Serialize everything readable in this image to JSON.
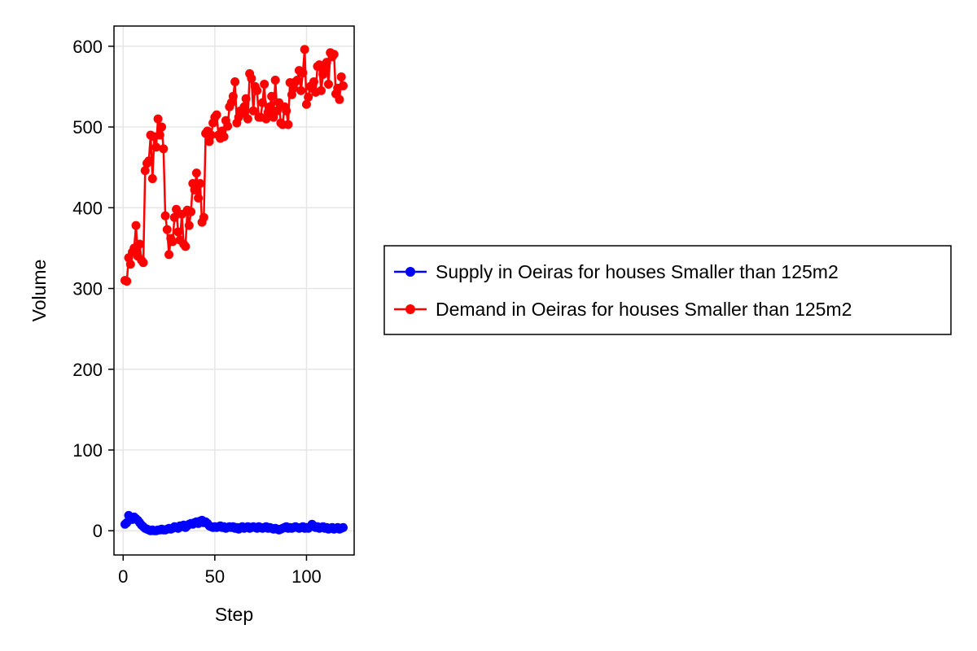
{
  "chart_data": {
    "type": "line",
    "xlabel": "Step",
    "ylabel": "Volume",
    "xlim": [
      -5,
      126
    ],
    "ylim": [
      -30,
      625
    ],
    "x_ticks": [
      0,
      50,
      100
    ],
    "y_ticks": [
      0,
      100,
      200,
      300,
      400,
      500,
      600
    ],
    "grid": true,
    "legend_position": "right",
    "series": [
      {
        "name": "Supply in Oeiras for houses Smaller than 125m2",
        "color": "#0000ff",
        "marker": "circle",
        "x": [
          1,
          2,
          3,
          4,
          5,
          6,
          7,
          8,
          9,
          10,
          11,
          12,
          13,
          14,
          15,
          16,
          17,
          18,
          19,
          20,
          21,
          22,
          23,
          24,
          25,
          26,
          27,
          28,
          29,
          30,
          31,
          32,
          33,
          34,
          35,
          36,
          37,
          38,
          39,
          40,
          41,
          42,
          43,
          44,
          45,
          46,
          47,
          48,
          49,
          50,
          51,
          52,
          53,
          54,
          55,
          56,
          57,
          58,
          59,
          60,
          61,
          62,
          63,
          64,
          65,
          66,
          67,
          68,
          69,
          70,
          71,
          72,
          73,
          74,
          75,
          76,
          77,
          78,
          79,
          80,
          81,
          82,
          83,
          84,
          85,
          86,
          87,
          88,
          89,
          90,
          91,
          92,
          93,
          94,
          95,
          96,
          97,
          98,
          99,
          100,
          101,
          102,
          103,
          104,
          105,
          106,
          107,
          108,
          109,
          110,
          111,
          112,
          113,
          114,
          115,
          116,
          117,
          118,
          119,
          120
        ],
        "y": [
          8,
          10,
          19,
          15,
          14,
          17,
          15,
          13,
          10,
          7,
          5,
          3,
          2,
          1,
          0,
          1,
          0,
          0,
          1,
          1,
          2,
          1,
          1,
          2,
          3,
          2,
          3,
          5,
          4,
          3,
          6,
          5,
          7,
          4,
          6,
          8,
          9,
          8,
          10,
          11,
          9,
          12,
          13,
          10,
          11,
          9,
          6,
          5,
          4,
          5,
          4,
          5,
          6,
          4,
          5,
          3,
          4,
          5,
          4,
          5,
          3,
          4,
          2,
          4,
          5,
          3,
          4,
          5,
          3,
          4,
          5,
          4,
          3,
          5,
          4,
          3,
          4,
          5,
          3,
          4,
          3,
          2,
          3,
          2,
          1,
          2,
          3,
          4,
          5,
          3,
          4,
          3,
          4,
          5,
          4,
          3,
          4,
          5,
          3,
          4,
          3,
          5,
          8,
          6,
          4,
          5,
          3,
          4,
          5,
          3,
          4,
          2,
          3,
          4,
          2,
          3,
          4,
          2,
          3,
          4
        ]
      },
      {
        "name": "Demand in Oeiras for houses Smaller than 125m2",
        "color": "#ff0000",
        "marker": "circle",
        "x": [
          1,
          2,
          3,
          4,
          5,
          6,
          7,
          8,
          9,
          10,
          11,
          12,
          13,
          14,
          15,
          16,
          17,
          18,
          19,
          20,
          21,
          22,
          23,
          24,
          25,
          26,
          27,
          28,
          29,
          30,
          31,
          32,
          33,
          34,
          35,
          36,
          37,
          38,
          39,
          40,
          41,
          42,
          43,
          44,
          45,
          46,
          47,
          48,
          49,
          50,
          51,
          52,
          53,
          54,
          55,
          56,
          57,
          58,
          59,
          60,
          61,
          62,
          63,
          64,
          65,
          66,
          67,
          68,
          69,
          70,
          71,
          72,
          73,
          74,
          75,
          76,
          77,
          78,
          79,
          80,
          81,
          82,
          83,
          84,
          85,
          86,
          87,
          88,
          89,
          90,
          91,
          92,
          93,
          94,
          95,
          96,
          97,
          98,
          99,
          100,
          101,
          102,
          103,
          104,
          105,
          106,
          107,
          108,
          109,
          110,
          111,
          112,
          113,
          114,
          115,
          116,
          117,
          118,
          119,
          120
        ],
        "y": [
          310,
          309,
          338,
          330,
          345,
          350,
          378,
          340,
          355,
          335,
          332,
          446,
          455,
          458,
          490,
          436,
          488,
          475,
          510,
          490,
          500,
          473,
          390,
          373,
          342,
          362,
          358,
          388,
          398,
          370,
          360,
          392,
          355,
          352,
          397,
          378,
          395,
          430,
          422,
          443,
          412,
          430,
          382,
          388,
          492,
          495,
          482,
          490,
          505,
          512,
          515,
          490,
          486,
          495,
          488,
          508,
          501,
          525,
          530,
          538,
          556,
          505,
          512,
          520,
          517,
          525,
          535,
          510,
          566,
          560,
          520,
          550,
          545,
          512,
          512,
          530,
          553,
          510,
          518,
          525,
          538,
          512,
          558,
          520,
          530,
          505,
          503,
          525,
          520,
          503,
          555,
          540,
          548,
          556,
          558,
          570,
          545,
          567,
          596,
          528,
          537,
          550,
          548,
          556,
          543,
          575,
          577,
          545,
          565,
          572,
          580,
          553,
          592,
          587,
          590,
          541,
          548,
          534,
          562,
          551
        ]
      }
    ]
  }
}
